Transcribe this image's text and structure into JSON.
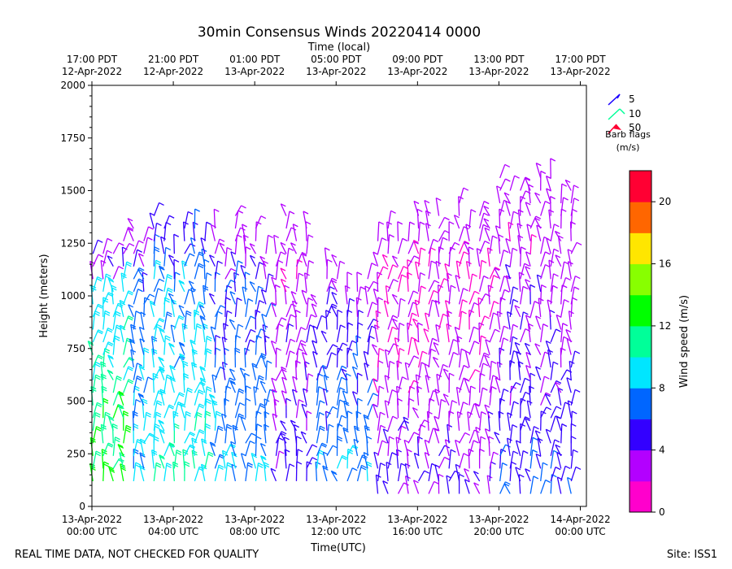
{
  "chart_data": {
    "type": "wind-barb",
    "title": "30min Consensus Winds 20220414 0000",
    "top_axis_label": "Time (local)",
    "xlabel": "Time(UTC)",
    "ylabel": "Height (meters)",
    "x_range_hours_utc": [
      0,
      24.3
    ],
    "ylim": [
      0,
      2000
    ],
    "y_ticks": [
      "0",
      "250",
      "500",
      "750",
      "1000",
      "1250",
      "1500",
      "1750",
      "2000"
    ],
    "x_ticks": [
      {
        "hour": 0,
        "line1": "13-Apr-2022",
        "line2": "00:00 UTC"
      },
      {
        "hour": 4,
        "line1": "13-Apr-2022",
        "line2": "04:00 UTC"
      },
      {
        "hour": 8,
        "line1": "13-Apr-2022",
        "line2": "08:00 UTC"
      },
      {
        "hour": 12,
        "line1": "13-Apr-2022",
        "line2": "12:00 UTC"
      },
      {
        "hour": 16,
        "line1": "13-Apr-2022",
        "line2": "16:00 UTC"
      },
      {
        "hour": 20,
        "line1": "13-Apr-2022",
        "line2": "20:00 UTC"
      },
      {
        "hour": 24,
        "line1": "14-Apr-2022",
        "line2": "00:00 UTC"
      }
    ],
    "top_ticks": [
      {
        "hour": 0,
        "line1": "17:00 PDT",
        "line2": "12-Apr-2022"
      },
      {
        "hour": 4,
        "line1": "21:00 PDT",
        "line2": "12-Apr-2022"
      },
      {
        "hour": 8,
        "line1": "01:00 PDT",
        "line2": "13-Apr-2022"
      },
      {
        "hour": 12,
        "line1": "05:00 PDT",
        "line2": "13-Apr-2022"
      },
      {
        "hour": 16,
        "line1": "09:00 PDT",
        "line2": "13-Apr-2022"
      },
      {
        "hour": 20,
        "line1": "13:00 PDT",
        "line2": "13-Apr-2022"
      },
      {
        "hour": 24,
        "line1": "17:00 PDT",
        "line2": "13-Apr-2022"
      }
    ],
    "legend": {
      "entries": [
        {
          "label": "5",
          "color": "#1a00ff"
        },
        {
          "label": "10",
          "color": "#00ff99"
        },
        {
          "label": "50",
          "color": "#ff0033"
        }
      ],
      "caption_line1": "Barb flags",
      "caption_line2": "(m/s)"
    },
    "colorbar": {
      "label": "Wind speed (m/s)",
      "range": [
        0,
        22
      ],
      "ticks": [
        "0",
        "4",
        "8",
        "12",
        "16",
        "20"
      ],
      "colors": [
        "#ff00cc",
        "#b300ff",
        "#3300ff",
        "#0066ff",
        "#00e6ff",
        "#00ff99",
        "#00ff00",
        "#88ff00",
        "#ffe600",
        "#ff6600",
        "#ff0033"
      ]
    },
    "speed_regimes": [
      {
        "t0": 0,
        "t1": 1.7,
        "h0": 60,
        "h1": 1300,
        "speed_low": 8,
        "speed_high": 13,
        "top_speed": 3
      },
      {
        "t0": 1.7,
        "t1": 3,
        "h0": 60,
        "h1": 1250,
        "speed_low": 6,
        "speed_high": 9,
        "top_speed": 2
      },
      {
        "t0": 3,
        "t1": 6,
        "h0": 60,
        "h1": 1300,
        "speed_low": 7,
        "speed_high": 10,
        "top_speed": 5
      },
      {
        "t0": 6,
        "t1": 9,
        "h0": 60,
        "h1": 1330,
        "speed_low": 5,
        "speed_high": 8,
        "top_speed": 2
      },
      {
        "t0": 9,
        "t1": 11,
        "h0": 60,
        "h1": 1300,
        "speed_low": 2,
        "speed_high": 5,
        "top_speed": 2
      },
      {
        "t0": 11,
        "t1": 14,
        "h0": 60,
        "h1": 1100,
        "speed_low": 4,
        "speed_high": 8,
        "top_speed": 2
      },
      {
        "t0": 14,
        "t1": 20,
        "h0": 0,
        "h1": 1350,
        "speed_low": 1,
        "speed_high": 4,
        "top_speed": 2
      },
      {
        "t0": 20,
        "t1": 23.5,
        "h0": 0,
        "h1": 1550,
        "speed_low": 2,
        "speed_high": 6,
        "top_speed": 2
      }
    ]
  },
  "footer": {
    "left_note": "REAL TIME DATA, NOT CHECKED FOR QUALITY",
    "site": "Site: ISS1"
  }
}
